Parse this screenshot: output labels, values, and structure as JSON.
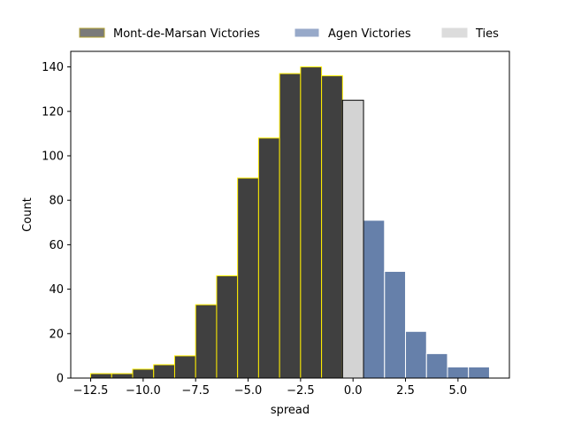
{
  "chart_data": {
    "type": "bar",
    "title": "",
    "xlabel": "spread",
    "ylabel": "Count",
    "xlim": [
      -13.45,
      7.45
    ],
    "ylim": [
      0,
      147
    ],
    "xticks": [
      -12.5,
      -10.0,
      -7.5,
      -5.0,
      -2.5,
      0.0,
      2.5,
      5.0
    ],
    "xtick_labels": [
      "−12.5",
      "−10.0",
      "−7.5",
      "−5.0",
      "−2.5",
      "0.0",
      "2.5",
      "5.0"
    ],
    "yticks": [
      0,
      20,
      40,
      60,
      80,
      100,
      120,
      140
    ],
    "yticks_labels": [
      "0",
      "20",
      "40",
      "60",
      "80",
      "100",
      "120",
      "140"
    ],
    "bin_width": 1.0,
    "grid": false,
    "legend_position": "top",
    "series": [
      {
        "name": "Mont-de-Marsan Victories",
        "fill": "#404040",
        "edge": "#ffee00",
        "legend_fill": "#7a7a7a",
        "legend_edge": "#b0a030",
        "bins": [
          {
            "x": -12,
            "value": 2
          },
          {
            "x": -11,
            "value": 2
          },
          {
            "x": -10,
            "value": 4
          },
          {
            "x": -9,
            "value": 6
          },
          {
            "x": -8,
            "value": 10
          },
          {
            "x": -7,
            "value": 33
          },
          {
            "x": -6,
            "value": 46
          },
          {
            "x": -5,
            "value": 90
          },
          {
            "x": -4,
            "value": 108
          },
          {
            "x": -3,
            "value": 137
          },
          {
            "x": -2,
            "value": 140
          },
          {
            "x": -1,
            "value": 136
          }
        ]
      },
      {
        "name": "Agen Victories",
        "fill": "#6680aa",
        "edge": "#ffffff",
        "legend_fill": "#97a9c9",
        "legend_edge": "#ffffff",
        "bins": [
          {
            "x": 1,
            "value": 71
          },
          {
            "x": 2,
            "value": 48
          },
          {
            "x": 3,
            "value": 21
          },
          {
            "x": 4,
            "value": 11
          },
          {
            "x": 5,
            "value": 5
          },
          {
            "x": 6,
            "value": 5
          }
        ]
      },
      {
        "name": "Ties",
        "fill": "#d3d3d3",
        "edge": "#000000",
        "legend_fill": "#dcdcdc",
        "legend_edge": "#dcdcdc",
        "bins": [
          {
            "x": 0,
            "value": 125
          }
        ]
      }
    ]
  }
}
